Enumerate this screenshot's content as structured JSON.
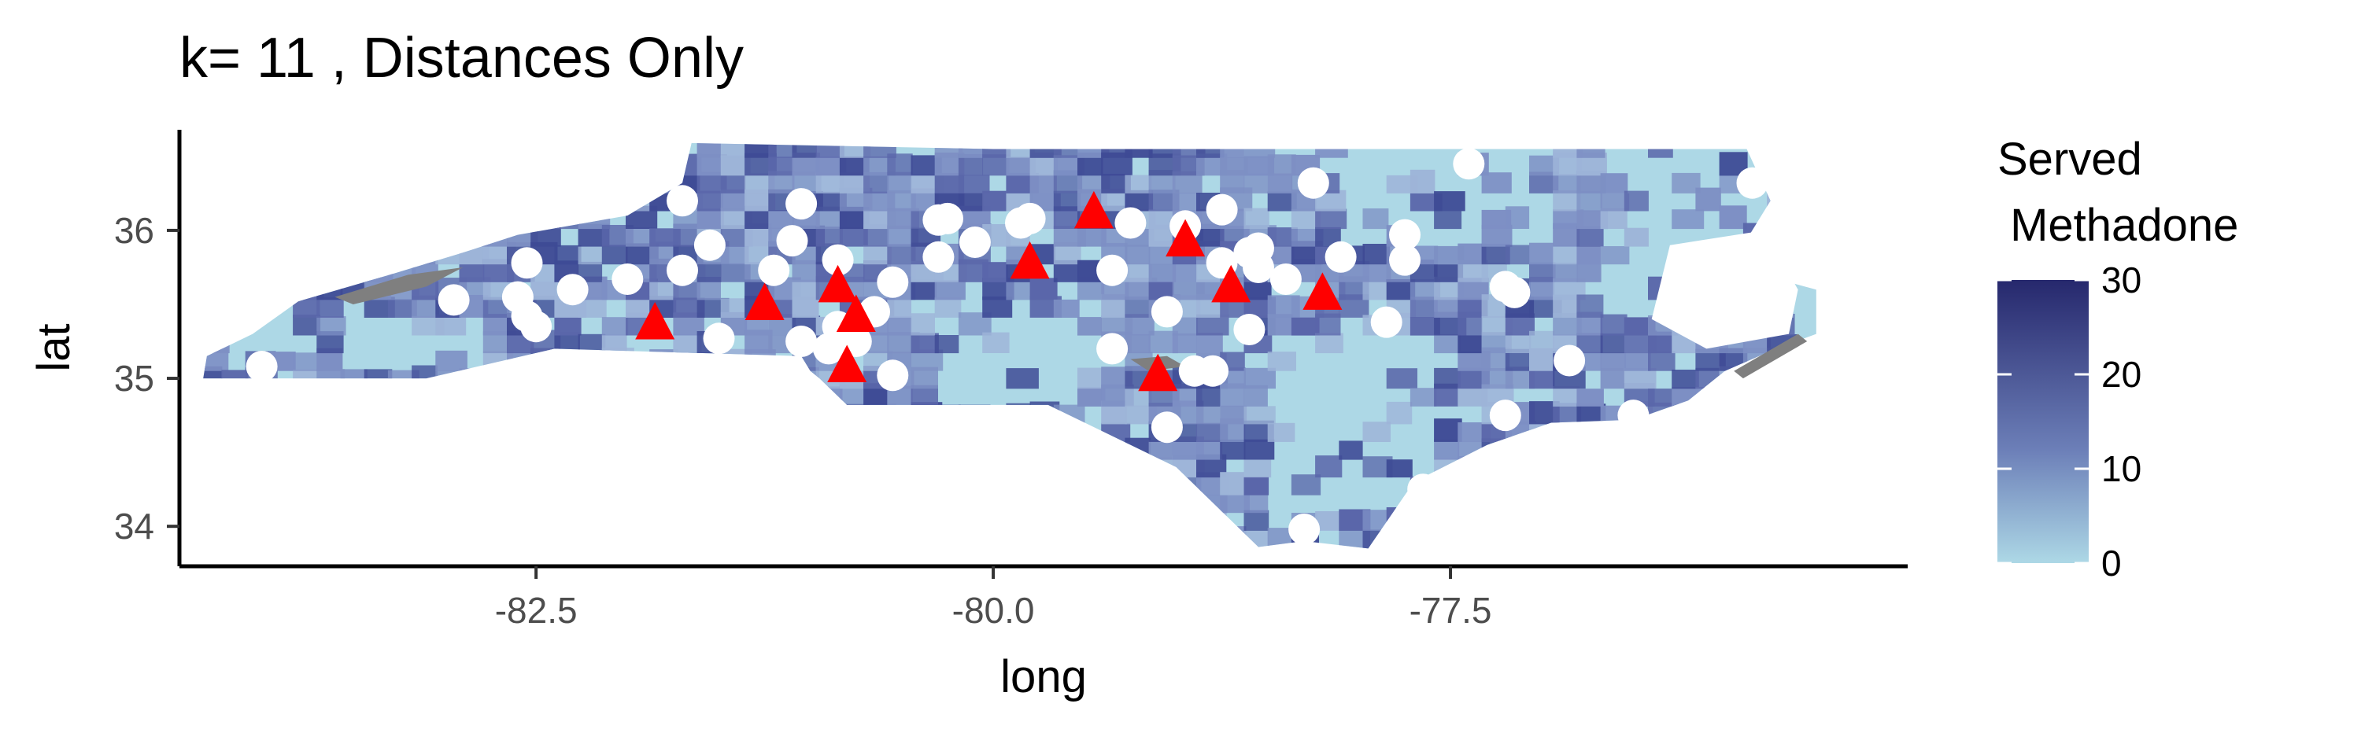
{
  "chart_data": {
    "type": "map",
    "title": "k= 11 , Distances Only",
    "xlabel": "long",
    "ylabel": "lat",
    "xlim": [
      -84.45,
      -75.0
    ],
    "ylim": [
      33.73,
      36.68
    ],
    "x_ticks": [
      -82.5,
      -80.0,
      -77.5
    ],
    "x_tick_labels": [
      "-82.5",
      "-80.0",
      "-77.5"
    ],
    "y_ticks": [
      34,
      35,
      36
    ],
    "y_tick_labels": [
      "34",
      "35",
      "36"
    ],
    "legend": {
      "title_lines": [
        "Served",
        " Methadone"
      ],
      "ticks": [
        30,
        20,
        10,
        0
      ],
      "tick_labels": [
        "30",
        "20",
        "10",
        "0"
      ],
      "range": [
        0,
        30
      ],
      "low_color": "#add8e6",
      "mid_color": "#6c7fb8",
      "high_color": "#26286d",
      "position": "right"
    },
    "region_fill_colors": {
      "base": "#add8e6",
      "light": "#9db4d8",
      "medium": "#7d8fc4",
      "dark": "#5a66aa",
      "darker": "#3e4a95",
      "missing": "#7f7f7f"
    },
    "series": [
      {
        "marker": "circle",
        "color": "#ffffff",
        "points": [
          {
            "x": -84.0,
            "y": 35.08
          },
          {
            "x": -82.95,
            "y": 35.53
          },
          {
            "x": -82.55,
            "y": 35.78
          },
          {
            "x": -82.6,
            "y": 35.55
          },
          {
            "x": -82.55,
            "y": 35.42
          },
          {
            "x": -82.5,
            "y": 35.35
          },
          {
            "x": -82.3,
            "y": 35.6
          },
          {
            "x": -82.0,
            "y": 35.67
          },
          {
            "x": -81.7,
            "y": 35.73
          },
          {
            "x": -81.7,
            "y": 36.2
          },
          {
            "x": -81.55,
            "y": 35.9
          },
          {
            "x": -81.5,
            "y": 35.27
          },
          {
            "x": -81.2,
            "y": 35.73
          },
          {
            "x": -81.1,
            "y": 35.93
          },
          {
            "x": -81.05,
            "y": 36.18
          },
          {
            "x": -81.05,
            "y": 35.25
          },
          {
            "x": -80.85,
            "y": 35.8
          },
          {
            "x": -80.85,
            "y": 35.35
          },
          {
            "x": -80.9,
            "y": 35.2
          },
          {
            "x": -80.75,
            "y": 35.25
          },
          {
            "x": -80.65,
            "y": 35.45
          },
          {
            "x": -80.55,
            "y": 35.65
          },
          {
            "x": -80.55,
            "y": 35.02
          },
          {
            "x": -80.3,
            "y": 36.07
          },
          {
            "x": -80.25,
            "y": 36.08
          },
          {
            "x": -80.3,
            "y": 35.82
          },
          {
            "x": -80.1,
            "y": 35.92
          },
          {
            "x": -79.85,
            "y": 36.05
          },
          {
            "x": -79.8,
            "y": 36.08
          },
          {
            "x": -79.35,
            "y": 35.73
          },
          {
            "x": -79.35,
            "y": 35.2
          },
          {
            "x": -79.25,
            "y": 36.05
          },
          {
            "x": -79.05,
            "y": 35.45
          },
          {
            "x": -78.95,
            "y": 36.03
          },
          {
            "x": -78.9,
            "y": 35.05
          },
          {
            "x": -78.8,
            "y": 35.05
          },
          {
            "x": -78.75,
            "y": 36.14
          },
          {
            "x": -78.75,
            "y": 35.78
          },
          {
            "x": -78.6,
            "y": 35.85
          },
          {
            "x": -78.55,
            "y": 35.88
          },
          {
            "x": -78.55,
            "y": 35.75
          },
          {
            "x": -78.4,
            "y": 35.67
          },
          {
            "x": -78.6,
            "y": 35.33
          },
          {
            "x": -78.25,
            "y": 36.32
          },
          {
            "x": -78.1,
            "y": 35.82
          },
          {
            "x": -79.05,
            "y": 34.67
          },
          {
            "x": -77.85,
            "y": 35.38
          },
          {
            "x": -77.75,
            "y": 35.97
          },
          {
            "x": -77.75,
            "y": 35.8
          },
          {
            "x": -77.65,
            "y": 34.25
          },
          {
            "x": -77.6,
            "y": 34.22
          },
          {
            "x": -77.4,
            "y": 36.45
          },
          {
            "x": -77.2,
            "y": 35.62
          },
          {
            "x": -77.15,
            "y": 35.58
          },
          {
            "x": -77.2,
            "y": 34.75
          },
          {
            "x": -76.85,
            "y": 35.12
          },
          {
            "x": -76.5,
            "y": 34.75
          },
          {
            "x": -75.85,
            "y": 36.32
          },
          {
            "x": -78.3,
            "y": 33.98
          }
        ]
      },
      {
        "marker": "triangle",
        "color": "#ff0000",
        "points": [
          {
            "x": -81.85,
            "y": 35.37
          },
          {
            "x": -81.25,
            "y": 35.5
          },
          {
            "x": -80.85,
            "y": 35.62
          },
          {
            "x": -80.75,
            "y": 35.42
          },
          {
            "x": -80.8,
            "y": 35.08
          },
          {
            "x": -79.8,
            "y": 35.78
          },
          {
            "x": -79.45,
            "y": 36.12
          },
          {
            "x": -79.1,
            "y": 35.02
          },
          {
            "x": -78.95,
            "y": 35.93
          },
          {
            "x": -78.7,
            "y": 35.62
          },
          {
            "x": -78.2,
            "y": 35.57
          }
        ]
      }
    ]
  }
}
